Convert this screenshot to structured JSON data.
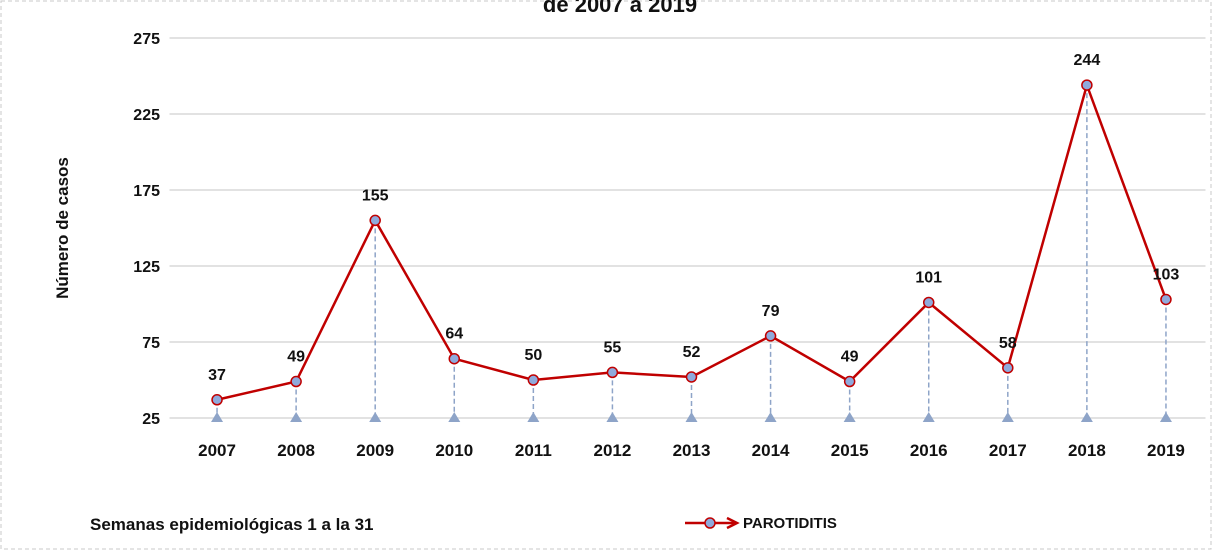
{
  "chart_data": {
    "type": "line",
    "title": "de 2007 a 2019",
    "y_label": "Número de casos",
    "annotation": "Semanas epidemiológicas 1 a la 31",
    "categories": [
      "2007",
      "2008",
      "2009",
      "2010",
      "2011",
      "2012",
      "2013",
      "2014",
      "2015",
      "2016",
      "2017",
      "2018",
      "2019"
    ],
    "series": [
      {
        "name": "PAROTIDITIS",
        "color": "#c00000",
        "marker_color": "#8faadc",
        "values": [
          37,
          49,
          155,
          64,
          50,
          55,
          52,
          79,
          49,
          101,
          58,
          244,
          103
        ]
      }
    ],
    "ylim": [
      25,
      275
    ],
    "yticks": [
      25,
      75,
      125,
      175,
      225,
      275
    ],
    "grid": true,
    "drop_lines": true,
    "legend": "bottom"
  }
}
